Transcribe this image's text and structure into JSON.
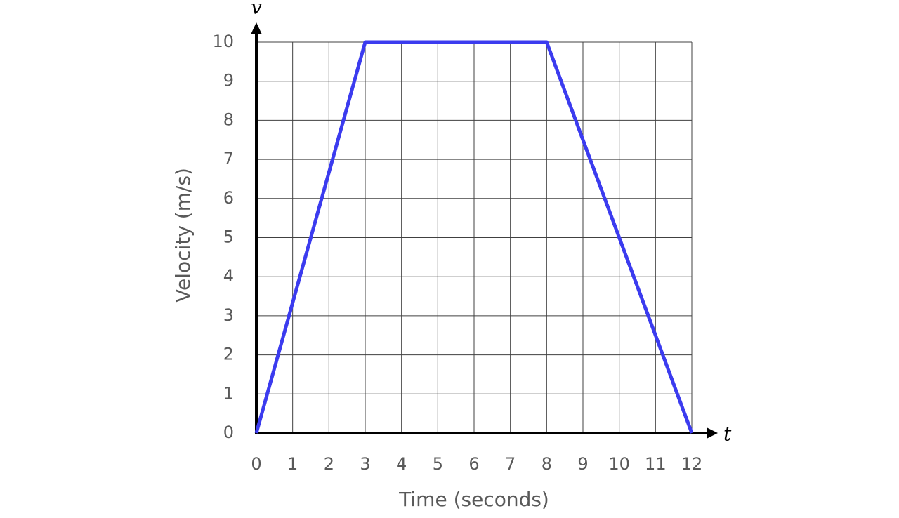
{
  "chart_data": {
    "type": "line",
    "x_label": "Time (seconds)",
    "y_label": "Velocity (m/s)",
    "x_axis_symbol": "t",
    "y_axis_symbol": "v",
    "x": [
      0,
      3,
      8,
      12
    ],
    "values": [
      0,
      10,
      10,
      0
    ],
    "color": "#3b3bef",
    "xlim": [
      0,
      12
    ],
    "xticks": [
      0,
      1,
      2,
      3,
      4,
      5,
      6,
      7,
      8,
      9,
      10,
      11,
      12
    ],
    "ylim": [
      0,
      10
    ],
    "yticks": [
      0,
      1,
      2,
      3,
      4,
      5,
      6,
      7,
      8,
      9,
      10
    ],
    "grid": true
  }
}
